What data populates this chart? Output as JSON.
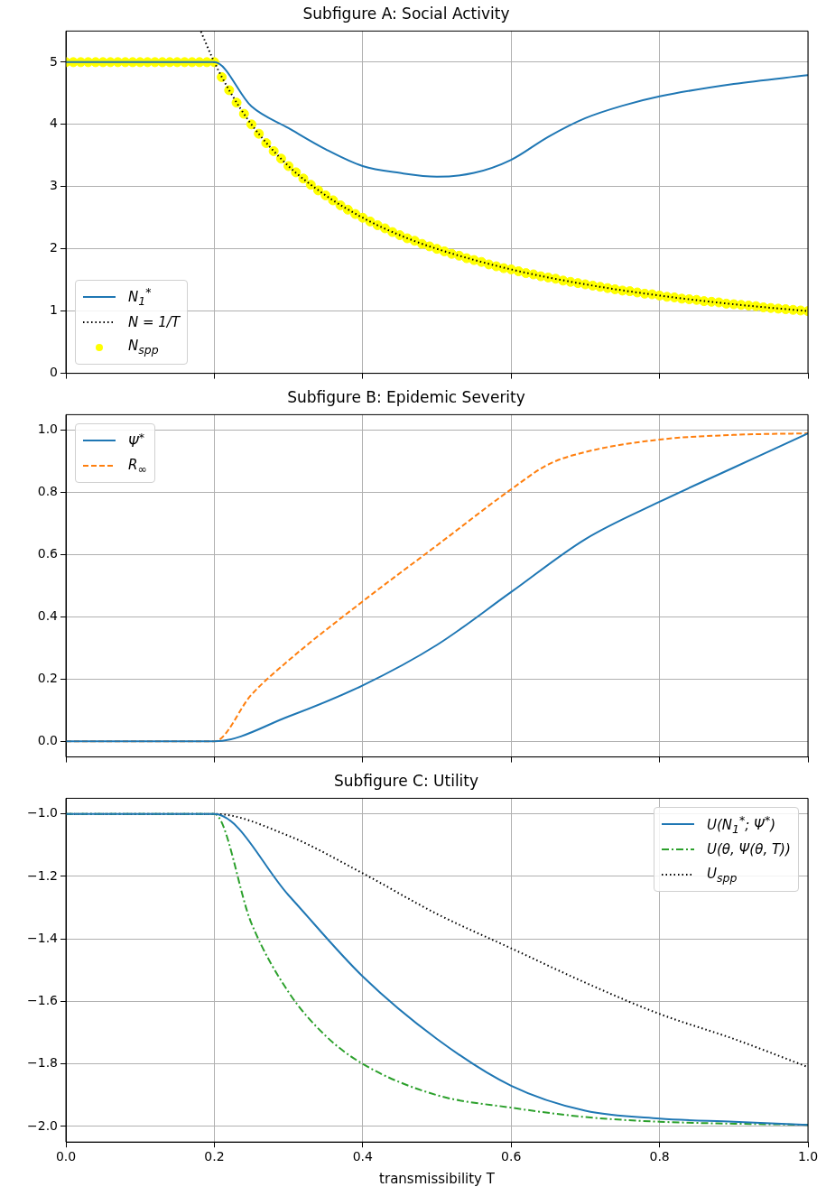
{
  "chart_data": [
    {
      "type": "line",
      "title": "Subfigure A: Social Activity",
      "xlim": [
        0,
        1
      ],
      "xticks": [
        0,
        0.2,
        0.4,
        0.6,
        0.8,
        1
      ],
      "ylim": [
        0,
        5.5
      ],
      "yticks": [
        0,
        1,
        2,
        3,
        4,
        5
      ],
      "grid": true,
      "legend": "bottom left",
      "tick_labels": "y",
      "series": [
        {
          "name": "N$_{1}$$^{*}$",
          "color": "#1f77b4",
          "line_style": "solid",
          "x": [
            0,
            0.2,
            0.25,
            0.3,
            0.35,
            0.4,
            0.45,
            0.5,
            0.55,
            0.6,
            0.65,
            0.7,
            0.75,
            0.8,
            0.9,
            1.0
          ],
          "values": [
            5,
            5,
            4.29,
            3.94,
            3.6,
            3.33,
            3.22,
            3.16,
            3.22,
            3.43,
            3.8,
            4.1,
            4.3,
            4.45,
            4.65,
            4.79
          ]
        },
        {
          "name": "N = 1/T",
          "color": "#000000",
          "line_style": "dotted",
          "x": [
            0.182,
            0.2,
            0.22,
            0.25,
            0.3,
            0.35,
            0.4,
            0.45,
            0.5,
            0.6,
            0.7,
            0.8,
            0.9,
            1.0
          ],
          "values": [
            5.49,
            5,
            4.55,
            4,
            3.33,
            2.86,
            2.5,
            2.22,
            2,
            1.67,
            1.43,
            1.25,
            1.11,
            1
          ]
        },
        {
          "name": "N$_{spp}$",
          "type": "scatter",
          "marker": "circle",
          "color": "#ffff00",
          "x": [
            0,
            0.01,
            0.02,
            0.03,
            0.04,
            0.05,
            0.06,
            0.07,
            0.08,
            0.09,
            0.1,
            0.11,
            0.12,
            0.13,
            0.14,
            0.15,
            0.16,
            0.17,
            0.18,
            0.19,
            0.2,
            0.21,
            0.22,
            0.23,
            0.24,
            0.25,
            0.26,
            0.27,
            0.28,
            0.29,
            0.3,
            0.31,
            0.32,
            0.33,
            0.34,
            0.35,
            0.36,
            0.37,
            0.38,
            0.39,
            0.4,
            0.41,
            0.42,
            0.43,
            0.44,
            0.45,
            0.46,
            0.47,
            0.48,
            0.49,
            0.5,
            0.51,
            0.52,
            0.53,
            0.54,
            0.55,
            0.56,
            0.57,
            0.58,
            0.59,
            0.6,
            0.61,
            0.62,
            0.63,
            0.64,
            0.65,
            0.66,
            0.67,
            0.68,
            0.69,
            0.7,
            0.71,
            0.72,
            0.73,
            0.74,
            0.75,
            0.76,
            0.77,
            0.78,
            0.79,
            0.8,
            0.81,
            0.82,
            0.83,
            0.84,
            0.85,
            0.86,
            0.87,
            0.88,
            0.89,
            0.9,
            0.91,
            0.92,
            0.93,
            0.94,
            0.95,
            0.96,
            0.97,
            0.98,
            0.99,
            1.0
          ],
          "values": [
            5,
            5,
            5,
            5,
            5,
            5,
            5,
            5,
            5,
            5,
            5,
            5,
            5,
            5,
            5,
            5,
            5,
            5,
            5,
            5,
            5,
            4.76,
            4.55,
            4.35,
            4.17,
            4.0,
            3.85,
            3.7,
            3.57,
            3.45,
            3.33,
            3.23,
            3.13,
            3.03,
            2.94,
            2.86,
            2.78,
            2.7,
            2.63,
            2.56,
            2.5,
            2.44,
            2.38,
            2.33,
            2.27,
            2.22,
            2.17,
            2.13,
            2.08,
            2.04,
            2.0,
            1.96,
            1.92,
            1.89,
            1.85,
            1.82,
            1.79,
            1.75,
            1.72,
            1.69,
            1.67,
            1.64,
            1.61,
            1.59,
            1.56,
            1.54,
            1.52,
            1.49,
            1.47,
            1.45,
            1.43,
            1.41,
            1.39,
            1.37,
            1.35,
            1.33,
            1.32,
            1.3,
            1.28,
            1.27,
            1.25,
            1.23,
            1.22,
            1.2,
            1.19,
            1.18,
            1.16,
            1.15,
            1.14,
            1.12,
            1.11,
            1.1,
            1.09,
            1.08,
            1.06,
            1.05,
            1.04,
            1.03,
            1.02,
            1.01,
            1.0
          ]
        }
      ]
    },
    {
      "type": "line",
      "title": "Subfigure B: Epidemic Severity",
      "xlim": [
        0,
        1
      ],
      "xticks": [
        0,
        0.2,
        0.4,
        0.6,
        0.8,
        1
      ],
      "ylim": [
        -0.05,
        1.05
      ],
      "yticks": [
        {
          "value": 0,
          "label": "0.0"
        },
        {
          "value": 0.2,
          "label": "0.2"
        },
        {
          "value": 0.4,
          "label": "0.4"
        },
        {
          "value": 0.6,
          "label": "0.6"
        },
        {
          "value": 0.8,
          "label": "0.8"
        },
        {
          "value": 1,
          "label": "1.0"
        }
      ],
      "grid": true,
      "legend": "top left",
      "tick_labels": "y",
      "series": [
        {
          "name": "Ψ$^{*}$",
          "color": "#1f77b4",
          "line_style": "solid",
          "x": [
            0,
            0.2,
            0.3,
            0.4,
            0.5,
            0.6,
            0.7,
            0.8,
            0.9,
            1.0
          ],
          "values": [
            0,
            0,
            0.08,
            0.18,
            0.31,
            0.48,
            0.65,
            0.77,
            0.88,
            0.99
          ]
        },
        {
          "name": "R$_{∞}$",
          "color": "#ff7f0e",
          "line_style": "dashed",
          "x": [
            0,
            0.2,
            0.25,
            0.3,
            0.4,
            0.5,
            0.6,
            0.65,
            0.7,
            0.8,
            0.9,
            1.0
          ],
          "values": [
            0,
            0,
            0.15,
            0.26,
            0.45,
            0.63,
            0.81,
            0.89,
            0.93,
            0.97,
            0.985,
            0.99
          ]
        }
      ]
    },
    {
      "type": "line",
      "title": "Subfigure C: Utility",
      "xlabel": "transmissibility T",
      "xlim": [
        0,
        1
      ],
      "xticks": [
        {
          "value": 0,
          "label": "0.0"
        },
        {
          "value": 0.2,
          "label": "0.2"
        },
        {
          "value": 0.4,
          "label": "0.4"
        },
        {
          "value": 0.6,
          "label": "0.6"
        },
        {
          "value": 0.8,
          "label": "0.8"
        },
        {
          "value": 1,
          "label": "1.0"
        }
      ],
      "ylim": [
        -2.05,
        -0.95
      ],
      "yticks": [
        {
          "value": -2,
          "label": "−2.0"
        },
        {
          "value": -1.8,
          "label": "−1.8"
        },
        {
          "value": -1.6,
          "label": "−1.6"
        },
        {
          "value": -1.4,
          "label": "−1.4"
        },
        {
          "value": -1.2,
          "label": "−1.2"
        },
        {
          "value": -1,
          "label": "−1.0"
        }
      ],
      "grid": true,
      "legend": "top right",
      "series": [
        {
          "name": "U(N$_{1}$$^{*}$; Ψ$^{*}$)",
          "color": "#1f77b4",
          "line_style": "solid",
          "x": [
            0,
            0.2,
            0.3,
            0.4,
            0.5,
            0.6,
            0.7,
            0.8,
            0.9,
            1.0
          ],
          "values": [
            -1,
            -1,
            -1.26,
            -1.52,
            -1.72,
            -1.87,
            -1.95,
            -1.975,
            -1.985,
            -1.995
          ]
        },
        {
          "name": "U(θ, Ψ(θ, T))",
          "color": "#2ca02c",
          "line_style": "dashdot",
          "x": [
            0,
            0.2,
            0.25,
            0.3,
            0.35,
            0.4,
            0.5,
            0.6,
            0.7,
            0.8,
            1.0
          ],
          "values": [
            -1,
            -1,
            -1.35,
            -1.57,
            -1.71,
            -1.8,
            -1.9,
            -1.94,
            -1.97,
            -1.985,
            -1.995
          ]
        },
        {
          "name": "U$_{spp}$",
          "color": "#000000",
          "line_style": "dotted",
          "x": [
            0,
            0.2,
            0.3,
            0.4,
            0.5,
            0.6,
            0.7,
            0.8,
            0.9,
            1.0
          ],
          "values": [
            -1,
            -1,
            -1.07,
            -1.19,
            -1.32,
            -1.43,
            -1.54,
            -1.64,
            -1.72,
            -1.81
          ]
        }
      ]
    }
  ]
}
